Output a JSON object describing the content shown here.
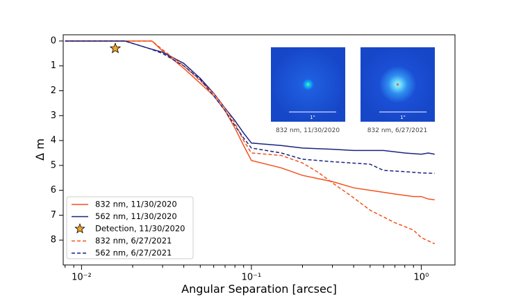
{
  "chart_data": {
    "type": "line",
    "x_label": "Angular Separation [arcsec]",
    "y_label": "Δ m",
    "xscale": "log",
    "xlim": [
      0.0078,
      1.58
    ],
    "ylim": [
      -0.25,
      9
    ],
    "y_inverted": true,
    "xticks": [
      {
        "value": 0.01,
        "label": "10⁻²"
      },
      {
        "value": 0.1,
        "label": "10⁻¹"
      },
      {
        "value": 1,
        "label": "10⁰"
      }
    ],
    "xminorticks": [
      0.008,
      0.009,
      0.02,
      0.03,
      0.04,
      0.05,
      0.06,
      0.07,
      0.08,
      0.09,
      0.2,
      0.3,
      0.4,
      0.5,
      0.6,
      0.7,
      0.8,
      0.9
    ],
    "yticks": [
      0,
      1,
      2,
      3,
      4,
      5,
      6,
      7,
      8
    ],
    "legend": "lower left",
    "series": [
      {
        "name": "832 nm, 11/30/2020",
        "color": "#f4511e",
        "style": "solid",
        "x": [
          0.008,
          0.026,
          0.03,
          0.04,
          0.05,
          0.06,
          0.07,
          0.08,
          0.09,
          0.1,
          0.15,
          0.2,
          0.3,
          0.4,
          0.5,
          0.7,
          0.9,
          1.0,
          1.1,
          1.2
        ],
        "values": [
          0,
          0,
          0.4,
          1.1,
          1.7,
          2.2,
          2.8,
          3.5,
          4.2,
          4.8,
          5.1,
          5.4,
          5.65,
          5.9,
          6.0,
          6.15,
          6.25,
          6.25,
          6.35,
          6.38
        ]
      },
      {
        "name": "562 nm, 11/30/2020",
        "color": "#1a237e",
        "style": "solid",
        "x": [
          0.008,
          0.018,
          0.025,
          0.03,
          0.04,
          0.05,
          0.06,
          0.07,
          0.08,
          0.09,
          0.1,
          0.15,
          0.2,
          0.3,
          0.4,
          0.6,
          0.8,
          1.0,
          1.1,
          1.2
        ],
        "values": [
          0,
          0,
          0.3,
          0.45,
          0.9,
          1.5,
          2.1,
          2.7,
          3.2,
          3.7,
          4.1,
          4.2,
          4.3,
          4.35,
          4.4,
          4.4,
          4.5,
          4.55,
          4.5,
          4.55
        ]
      },
      {
        "name": "Detection, 11/30/2020",
        "color": "#f5a623",
        "style": "marker",
        "marker": "star",
        "x": [
          0.0158
        ],
        "values": [
          0.3
        ]
      },
      {
        "name": "832 nm, 6/27/2021",
        "color": "#f4511e",
        "style": "dashed",
        "x": [
          0.008,
          0.026,
          0.03,
          0.04,
          0.05,
          0.06,
          0.07,
          0.08,
          0.09,
          0.1,
          0.15,
          0.2,
          0.25,
          0.3,
          0.4,
          0.5,
          0.7,
          0.9,
          1.0,
          1.2
        ],
        "values": [
          0,
          0,
          0.35,
          1.0,
          1.6,
          2.1,
          2.7,
          3.3,
          4.0,
          4.5,
          4.6,
          4.9,
          5.3,
          5.7,
          6.3,
          6.8,
          7.3,
          7.6,
          7.9,
          8.15
        ]
      },
      {
        "name": "562 nm, 6/27/2021",
        "color": "#1a237e",
        "style": "dashed",
        "x": [
          0.008,
          0.018,
          0.025,
          0.03,
          0.04,
          0.05,
          0.06,
          0.07,
          0.08,
          0.09,
          0.1,
          0.15,
          0.2,
          0.3,
          0.5,
          0.6,
          0.8,
          1.0,
          1.2
        ],
        "values": [
          0,
          0,
          0.3,
          0.5,
          1.0,
          1.55,
          2.2,
          2.8,
          3.4,
          3.9,
          4.3,
          4.5,
          4.75,
          4.85,
          4.95,
          5.2,
          5.25,
          5.3,
          5.32
        ]
      }
    ],
    "insets": [
      {
        "caption": "832 nm, 11/30/2020",
        "scale_label": "1\""
      },
      {
        "caption": "832 nm, 6/27/2021",
        "scale_label": "1\""
      }
    ]
  }
}
